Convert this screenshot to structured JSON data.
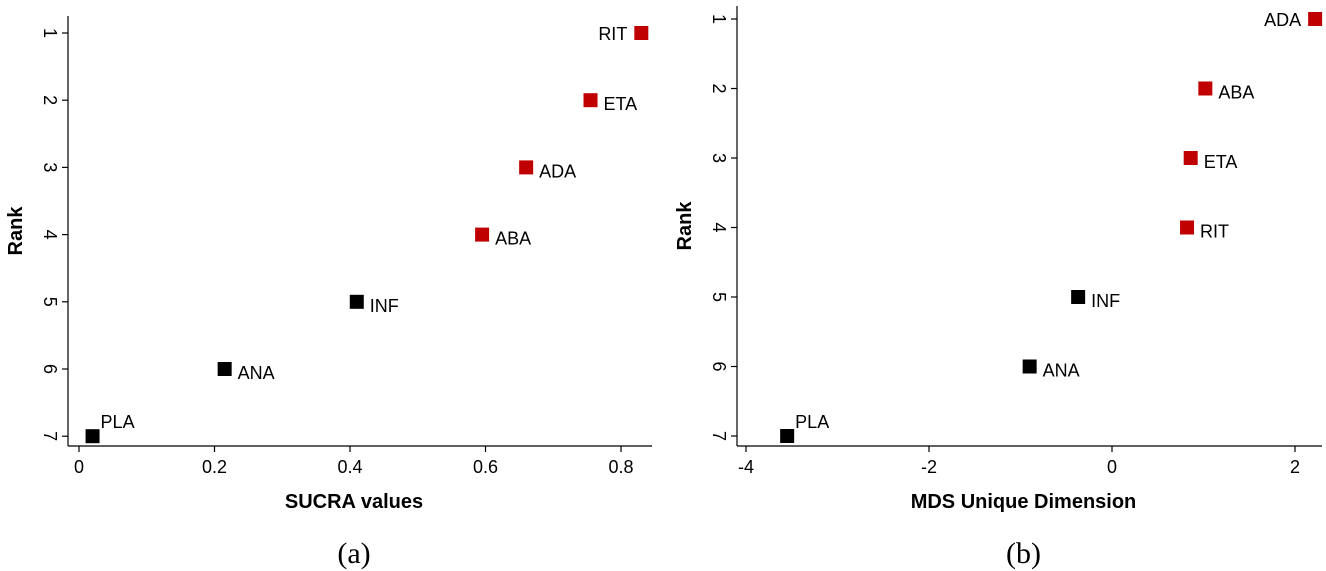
{
  "colors": {
    "highlight": "#c00000",
    "default": "#000000"
  },
  "chart_data": [
    {
      "type": "scatter",
      "caption": "(a)",
      "xlabel": "SUCRA values",
      "ylabel": "Rank",
      "xlim": [
        0,
        0.8
      ],
      "ylim": [
        1,
        7
      ],
      "y_reversed": true,
      "xticks": [
        "0",
        "0.2",
        "0.4",
        "0.6",
        "0.8"
      ],
      "yticks": [
        "1",
        "2",
        "3",
        "4",
        "5",
        "6",
        "7"
      ],
      "points": [
        {
          "label": "RIT",
          "x": 0.83,
          "y": 1,
          "highlight": true
        },
        {
          "label": "ETA",
          "x": 0.755,
          "y": 2,
          "highlight": true
        },
        {
          "label": "ADA",
          "x": 0.66,
          "y": 3,
          "highlight": true
        },
        {
          "label": "ABA",
          "x": 0.595,
          "y": 4,
          "highlight": true
        },
        {
          "label": "INF",
          "x": 0.41,
          "y": 5,
          "highlight": false
        },
        {
          "label": "ANA",
          "x": 0.215,
          "y": 6,
          "highlight": false
        },
        {
          "label": "PLA",
          "x": 0.02,
          "y": 7,
          "highlight": false
        }
      ]
    },
    {
      "type": "scatter",
      "caption": "(b)",
      "xlabel": "MDS Unique Dimension",
      "ylabel": "Rank",
      "xlim": [
        -4,
        2
      ],
      "ylim": [
        1,
        7
      ],
      "y_reversed": true,
      "xticks": [
        "-4",
        "-2",
        "0",
        "2"
      ],
      "yticks": [
        "1",
        "2",
        "3",
        "4",
        "5",
        "6",
        "7"
      ],
      "points": [
        {
          "label": "ADA",
          "x": 2.22,
          "y": 1,
          "highlight": true
        },
        {
          "label": "ABA",
          "x": 1.02,
          "y": 2,
          "highlight": true
        },
        {
          "label": "ETA",
          "x": 0.86,
          "y": 3,
          "highlight": true
        },
        {
          "label": "RIT",
          "x": 0.82,
          "y": 4,
          "highlight": true
        },
        {
          "label": "INF",
          "x": -0.37,
          "y": 5,
          "highlight": false
        },
        {
          "label": "ANA",
          "x": -0.9,
          "y": 6,
          "highlight": false
        },
        {
          "label": "PLA",
          "x": -3.55,
          "y": 7,
          "highlight": false
        }
      ]
    }
  ]
}
